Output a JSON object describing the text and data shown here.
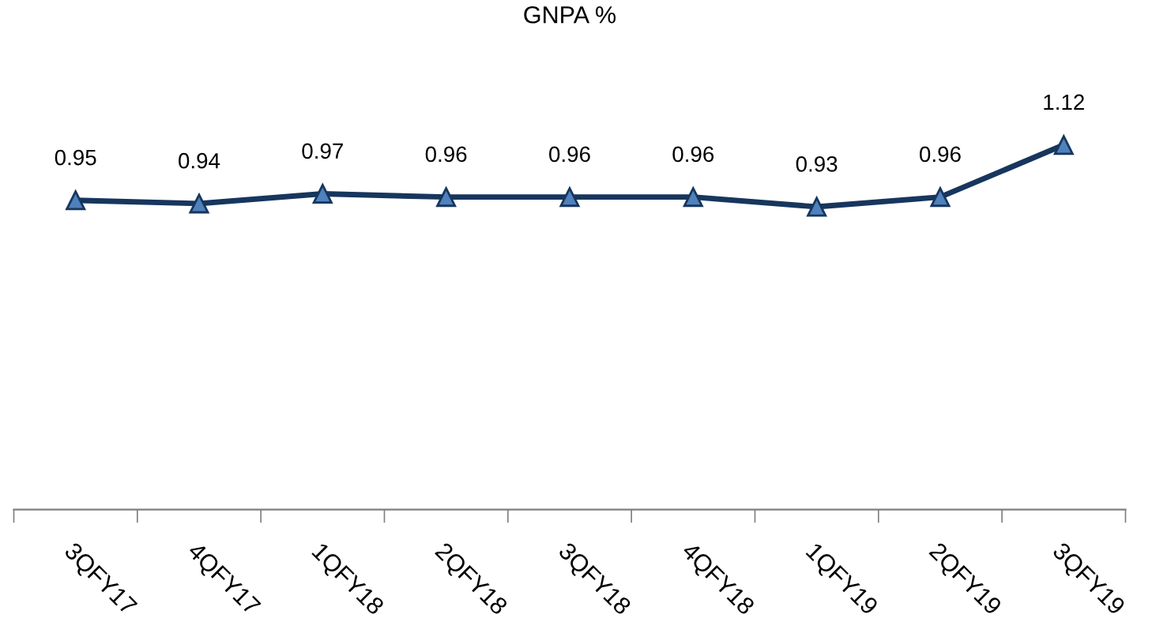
{
  "chart_data": {
    "type": "line",
    "title": "GNPA %",
    "categories": [
      "3QFY17",
      "4QFY17",
      "1QFY18",
      "2QFY18",
      "3QFY18",
      "4QFY18",
      "1QFY19",
      "2QFY19",
      "3QFY19"
    ],
    "series": [
      {
        "color": "#17365d",
        "values": [
          0.95,
          0.94,
          0.97,
          0.96,
          0.96,
          0.96,
          0.93,
          0.96,
          1.12
        ]
      }
    ],
    "data_labels": true,
    "marker": "triangle",
    "line_style": "solid",
    "tick_labels": "x"
  }
}
